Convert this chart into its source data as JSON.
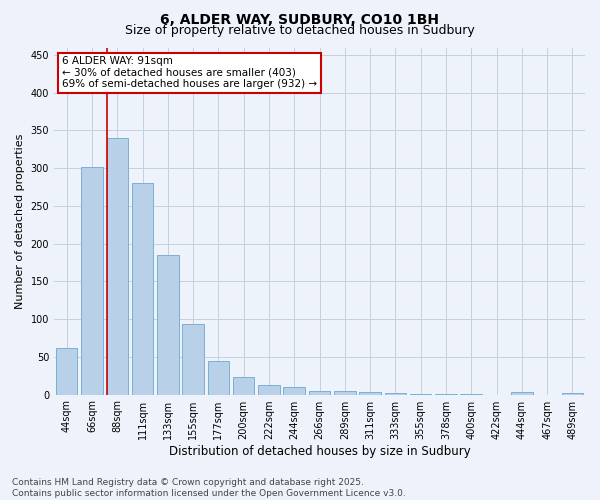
{
  "title_line1": "6, ALDER WAY, SUDBURY, CO10 1BH",
  "title_line2": "Size of property relative to detached houses in Sudbury",
  "xlabel": "Distribution of detached houses by size in Sudbury",
  "ylabel": "Number of detached properties",
  "categories": [
    "44sqm",
    "66sqm",
    "88sqm",
    "111sqm",
    "133sqm",
    "155sqm",
    "177sqm",
    "200sqm",
    "222sqm",
    "244sqm",
    "266sqm",
    "289sqm",
    "311sqm",
    "333sqm",
    "355sqm",
    "378sqm",
    "400sqm",
    "422sqm",
    "444sqm",
    "467sqm",
    "489sqm"
  ],
  "values": [
    62,
    301,
    340,
    280,
    185,
    93,
    45,
    23,
    13,
    10,
    5,
    5,
    3,
    2,
    1,
    1,
    1,
    0,
    3,
    0,
    2
  ],
  "bar_color": "#b8d0e8",
  "bar_edge_color": "#7aafd4",
  "ylim": [
    0,
    460
  ],
  "yticks": [
    0,
    50,
    100,
    150,
    200,
    250,
    300,
    350,
    400,
    450
  ],
  "vline_x_index": 2,
  "vline_color": "#cc0000",
  "annotation_text": "6 ALDER WAY: 91sqm\n← 30% of detached houses are smaller (403)\n69% of semi-detached houses are larger (932) →",
  "annotation_box_color": "#ffffff",
  "annotation_box_edge": "#cc0000",
  "footer_line1": "Contains HM Land Registry data © Crown copyright and database right 2025.",
  "footer_line2": "Contains public sector information licensed under the Open Government Licence v3.0.",
  "bg_color": "#eef2fb",
  "plot_bg_color": "#eef2fb",
  "grid_color": "#c5d0e0",
  "title_fontsize": 10,
  "subtitle_fontsize": 9,
  "tick_fontsize": 7,
  "xlabel_fontsize": 8.5,
  "ylabel_fontsize": 8,
  "footer_fontsize": 6.5,
  "annotation_fontsize": 7.5
}
